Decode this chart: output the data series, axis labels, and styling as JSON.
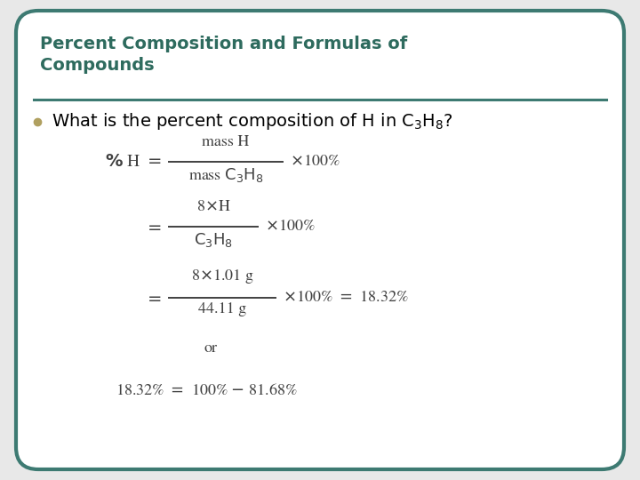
{
  "background_color": "#e8e8e8",
  "border_color": "#3d7a72",
  "title_text": "Percent Composition and Formulas of\nCompounds",
  "title_color": "#2e6b5e",
  "separator_color": "#3d7a72",
  "bullet_color": "#b0a060",
  "eq_color": "#404040",
  "bullet_fontsize": 14,
  "title_fontsize": 14,
  "eq_fontsize": 13,
  "fig_width": 7.2,
  "fig_height": 5.4,
  "dpi": 100
}
